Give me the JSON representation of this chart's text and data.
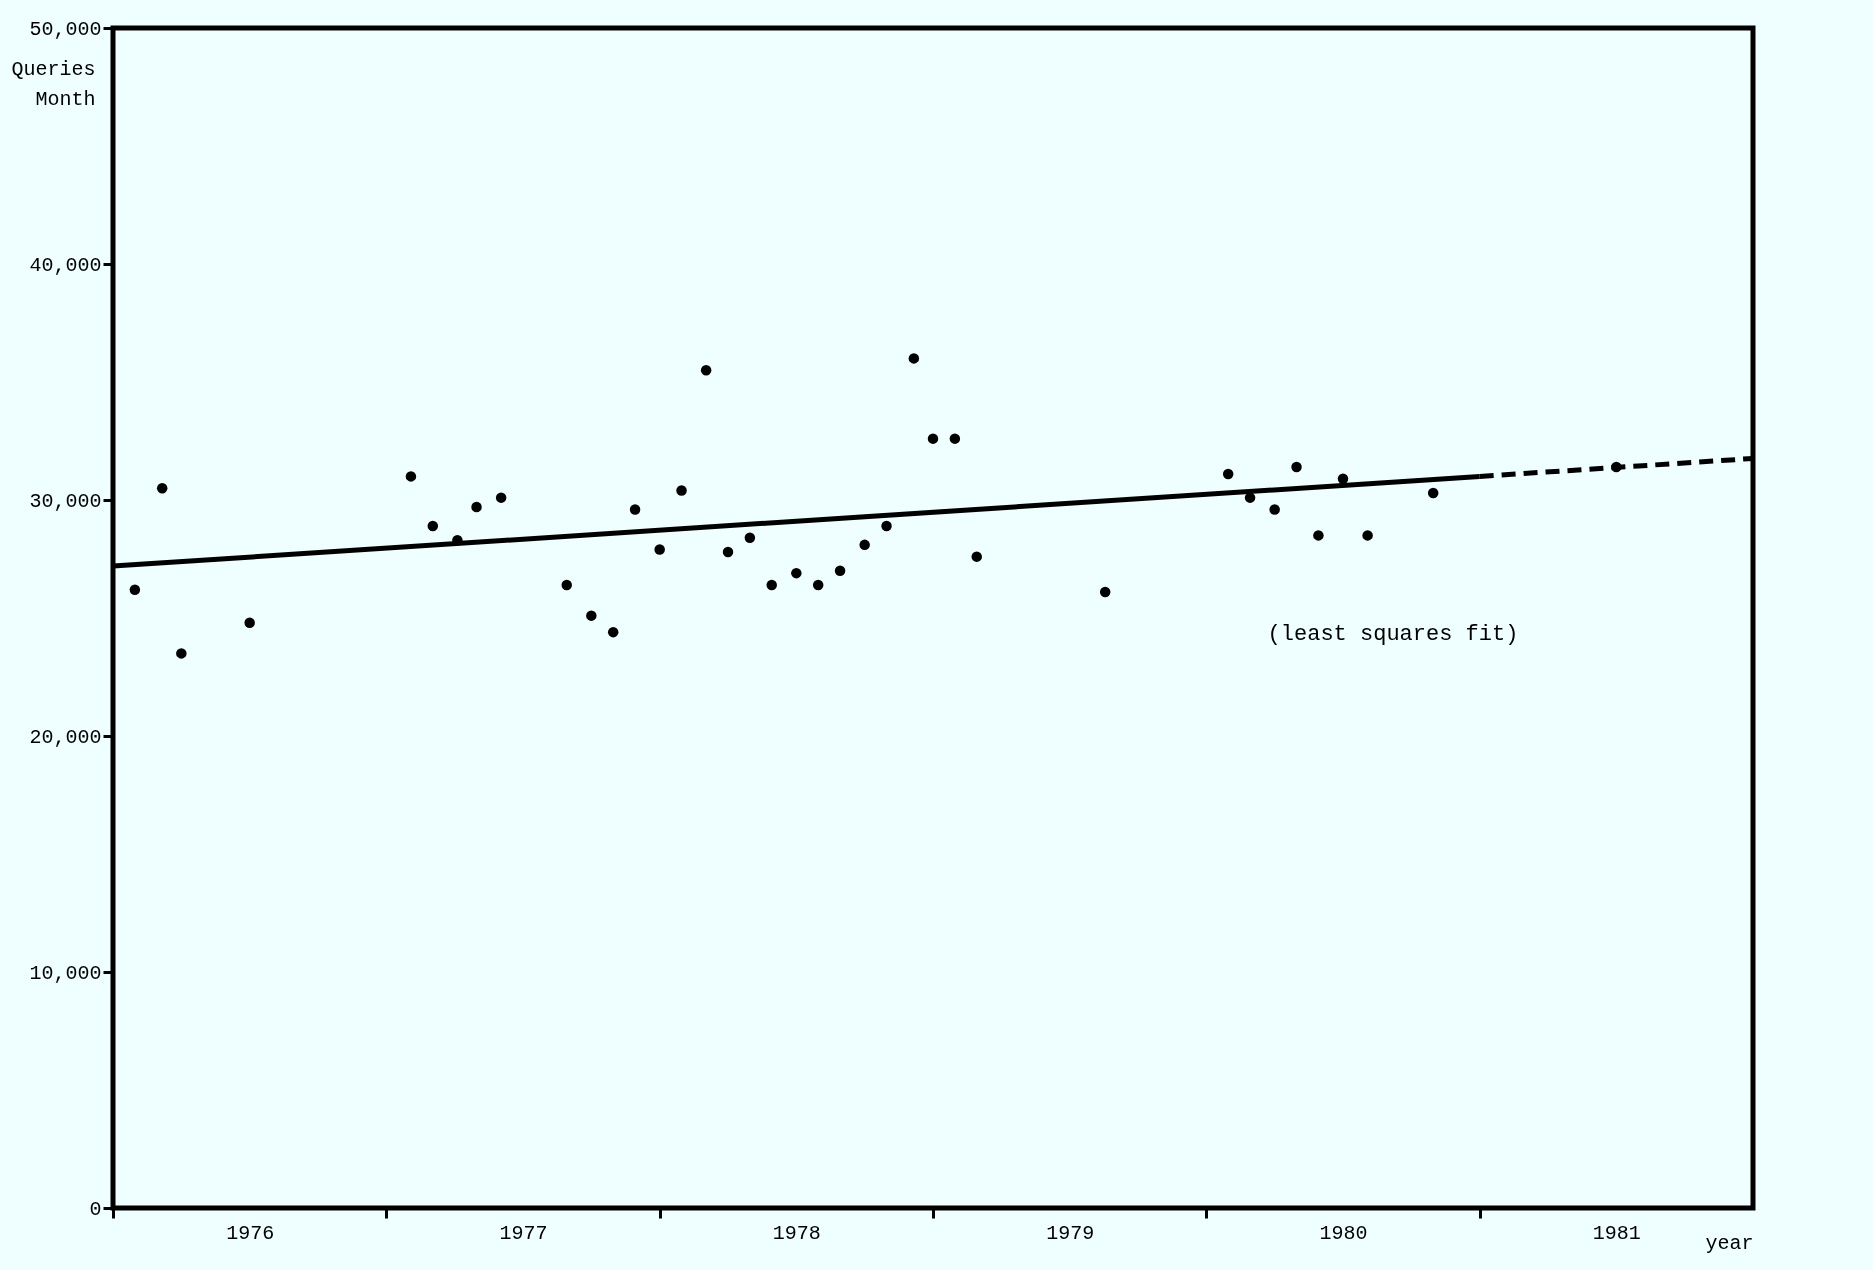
{
  "chart_data": {
    "type": "scatter",
    "ylabel": "Queries\nMonth",
    "xlabel": "year",
    "xlim": [
      1976,
      1982
    ],
    "ylim": [
      0,
      50000
    ],
    "xticks": [
      {
        "value": 1976,
        "label": null
      },
      {
        "value": 1976.5,
        "label": "1976"
      },
      {
        "value": 1977,
        "label": null
      },
      {
        "value": 1977.5,
        "label": "1977"
      },
      {
        "value": 1978,
        "label": null
      },
      {
        "value": 1978.5,
        "label": "1978"
      },
      {
        "value": 1979,
        "label": null
      },
      {
        "value": 1979.5,
        "label": "1979"
      },
      {
        "value": 1980,
        "label": null
      },
      {
        "value": 1980.5,
        "label": "1980"
      },
      {
        "value": 1981,
        "label": null
      },
      {
        "value": 1981.5,
        "label": "1981"
      }
    ],
    "yticks": [
      0,
      {
        "value": 10000,
        "label": "10,000"
      },
      {
        "value": 20000,
        "label": "20,000"
      },
      {
        "value": 30000,
        "label": "30,000"
      },
      {
        "value": 40000,
        "label": "40,000"
      },
      {
        "value": 50000,
        "label": "50,000"
      }
    ],
    "grid": false,
    "marker": "circle",
    "annotations": [
      "(least squares fit)"
    ],
    "series": [
      {
        "color": "#000000",
        "x": [
          1976.08,
          1976.18,
          1976.25,
          1976.5,
          1977.09,
          1977.17,
          1977.26,
          1977.33,
          1977.42,
          1977.66,
          1977.75,
          1977.83,
          1977.91,
          1978.0,
          1978.08,
          1978.17,
          1978.25,
          1978.33,
          1978.41,
          1978.5,
          1978.58,
          1978.66,
          1978.75,
          1978.83,
          1978.93,
          1979.0,
          1979.08,
          1979.16,
          1979.63,
          1980.08,
          1980.16,
          1980.25,
          1980.33,
          1980.41,
          1980.5,
          1980.59,
          1980.83,
          1981.5
        ],
        "values": [
          26200,
          30500,
          23500,
          24800,
          31000,
          28900,
          28300,
          29700,
          30100,
          26400,
          25100,
          24400,
          29600,
          27900,
          30400,
          35500,
          27800,
          28400,
          26400,
          26900,
          26400,
          27000,
          28100,
          28900,
          36000,
          32600,
          32600,
          27600,
          26100,
          31100,
          30100,
          29600,
          31400,
          28500,
          30900,
          28500,
          30300,
          31400
        ]
      },
      {
        "type": "line",
        "color": "#000000",
        "line_style": "solid",
        "marker": "none",
        "x": [
          1976,
          1981
        ],
        "values": [
          27200,
          31000
        ]
      },
      {
        "type": "line",
        "color": "#000000",
        "line_style": "dashed",
        "marker": "none",
        "x": [
          1981,
          1982
        ],
        "values": [
          31000,
          31760
        ]
      }
    ]
  }
}
